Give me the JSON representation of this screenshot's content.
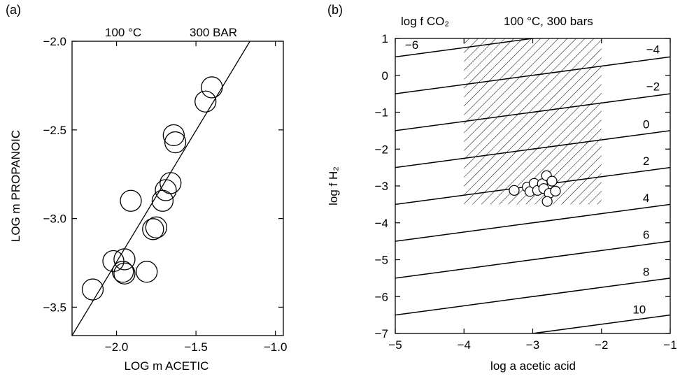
{
  "chart_data": [
    {
      "panel_label": "(a)",
      "type": "scatter",
      "xlabel": "LOG m ACETIC",
      "ylabel": "LOG m PROPANOIC",
      "annotations": [
        "100 °C",
        "300 BAR"
      ],
      "xlim": [
        -2.28,
        -0.95
      ],
      "ylim": [
        -3.66,
        -2.0
      ],
      "x_ticks": [
        -2.0,
        -1.5,
        -1.0
      ],
      "x_tick_labels": [
        "−2.0",
        "−1.5",
        "−1.0"
      ],
      "y_ticks": [
        -2.0,
        -2.5,
        -3.0,
        -3.5
      ],
      "y_tick_labels": [
        "−2.0",
        "−2.5",
        "−3.0",
        "−3.5"
      ],
      "points": [
        {
          "x": -2.15,
          "y": -3.4
        },
        {
          "x": -2.02,
          "y": -3.24
        },
        {
          "x": -1.95,
          "y": -3.23
        },
        {
          "x": -1.96,
          "y": -3.3
        },
        {
          "x": -1.95,
          "y": -3.31
        },
        {
          "x": -1.91,
          "y": -2.9
        },
        {
          "x": -1.81,
          "y": -3.3
        },
        {
          "x": -1.77,
          "y": -3.06
        },
        {
          "x": -1.75,
          "y": -3.05
        },
        {
          "x": -1.71,
          "y": -2.9
        },
        {
          "x": -1.69,
          "y": -2.84
        },
        {
          "x": -1.66,
          "y": -2.8
        },
        {
          "x": -1.64,
          "y": -2.53
        },
        {
          "x": -1.63,
          "y": -2.57
        },
        {
          "x": -1.44,
          "y": -2.34
        },
        {
          "x": -1.4,
          "y": -2.26
        }
      ],
      "fit_line": [
        {
          "x": -2.28,
          "y": -3.66
        },
        {
          "x": -1.16,
          "y": -2.0
        }
      ]
    },
    {
      "panel_label": "(b)",
      "type": "line",
      "xlabel": "log a acetic acid",
      "ylabel": "log f H₂",
      "title_left": "log f CO₂",
      "title_right": "100 °C, 300 bars",
      "xlim": [
        -5,
        -1
      ],
      "ylim": [
        -7,
        1
      ],
      "x_ticks": [
        -5,
        -4,
        -3,
        -2,
        -1
      ],
      "x_tick_labels": [
        "−5",
        "−4",
        "−3",
        "−2",
        "−1"
      ],
      "y_ticks": [
        1,
        0,
        -1,
        -2,
        -3,
        -4,
        -5,
        -6,
        -7
      ],
      "y_tick_labels": [
        "1",
        "0",
        "−1",
        "−2",
        "−3",
        "−4",
        "−5",
        "−6",
        "−7"
      ],
      "slope": 0.25,
      "series": [
        {
          "name": "−6",
          "y_at_xmin": 0.5
        },
        {
          "name": "−4",
          "y_at_xmin": -0.5
        },
        {
          "name": "−2",
          "y_at_xmin": -1.5
        },
        {
          "name": "0",
          "y_at_xmin": -2.5
        },
        {
          "name": "2",
          "y_at_xmin": -3.5
        },
        {
          "name": "4",
          "y_at_xmin": -4.5
        },
        {
          "name": "6",
          "y_at_xmin": -5.5
        },
        {
          "name": "8",
          "y_at_xmin": -6.5
        },
        {
          "name": "10",
          "y_at_xmin": -7.5
        }
      ],
      "shaded_region": {
        "x": [
          -4,
          -2
        ],
        "y": [
          -3.5,
          1
        ]
      },
      "points": [
        {
          "x": -3.27,
          "y": -3.12
        },
        {
          "x": -3.08,
          "y": -3.03
        },
        {
          "x": -3.04,
          "y": -3.15
        },
        {
          "x": -2.98,
          "y": -2.93
        },
        {
          "x": -2.93,
          "y": -3.12
        },
        {
          "x": -2.86,
          "y": -2.94
        },
        {
          "x": -2.84,
          "y": -3.07
        },
        {
          "x": -2.8,
          "y": -2.72
        },
        {
          "x": -2.76,
          "y": -3.2
        },
        {
          "x": -2.79,
          "y": -3.42
        },
        {
          "x": -2.72,
          "y": -2.87
        },
        {
          "x": -2.67,
          "y": -3.14
        }
      ]
    }
  ]
}
